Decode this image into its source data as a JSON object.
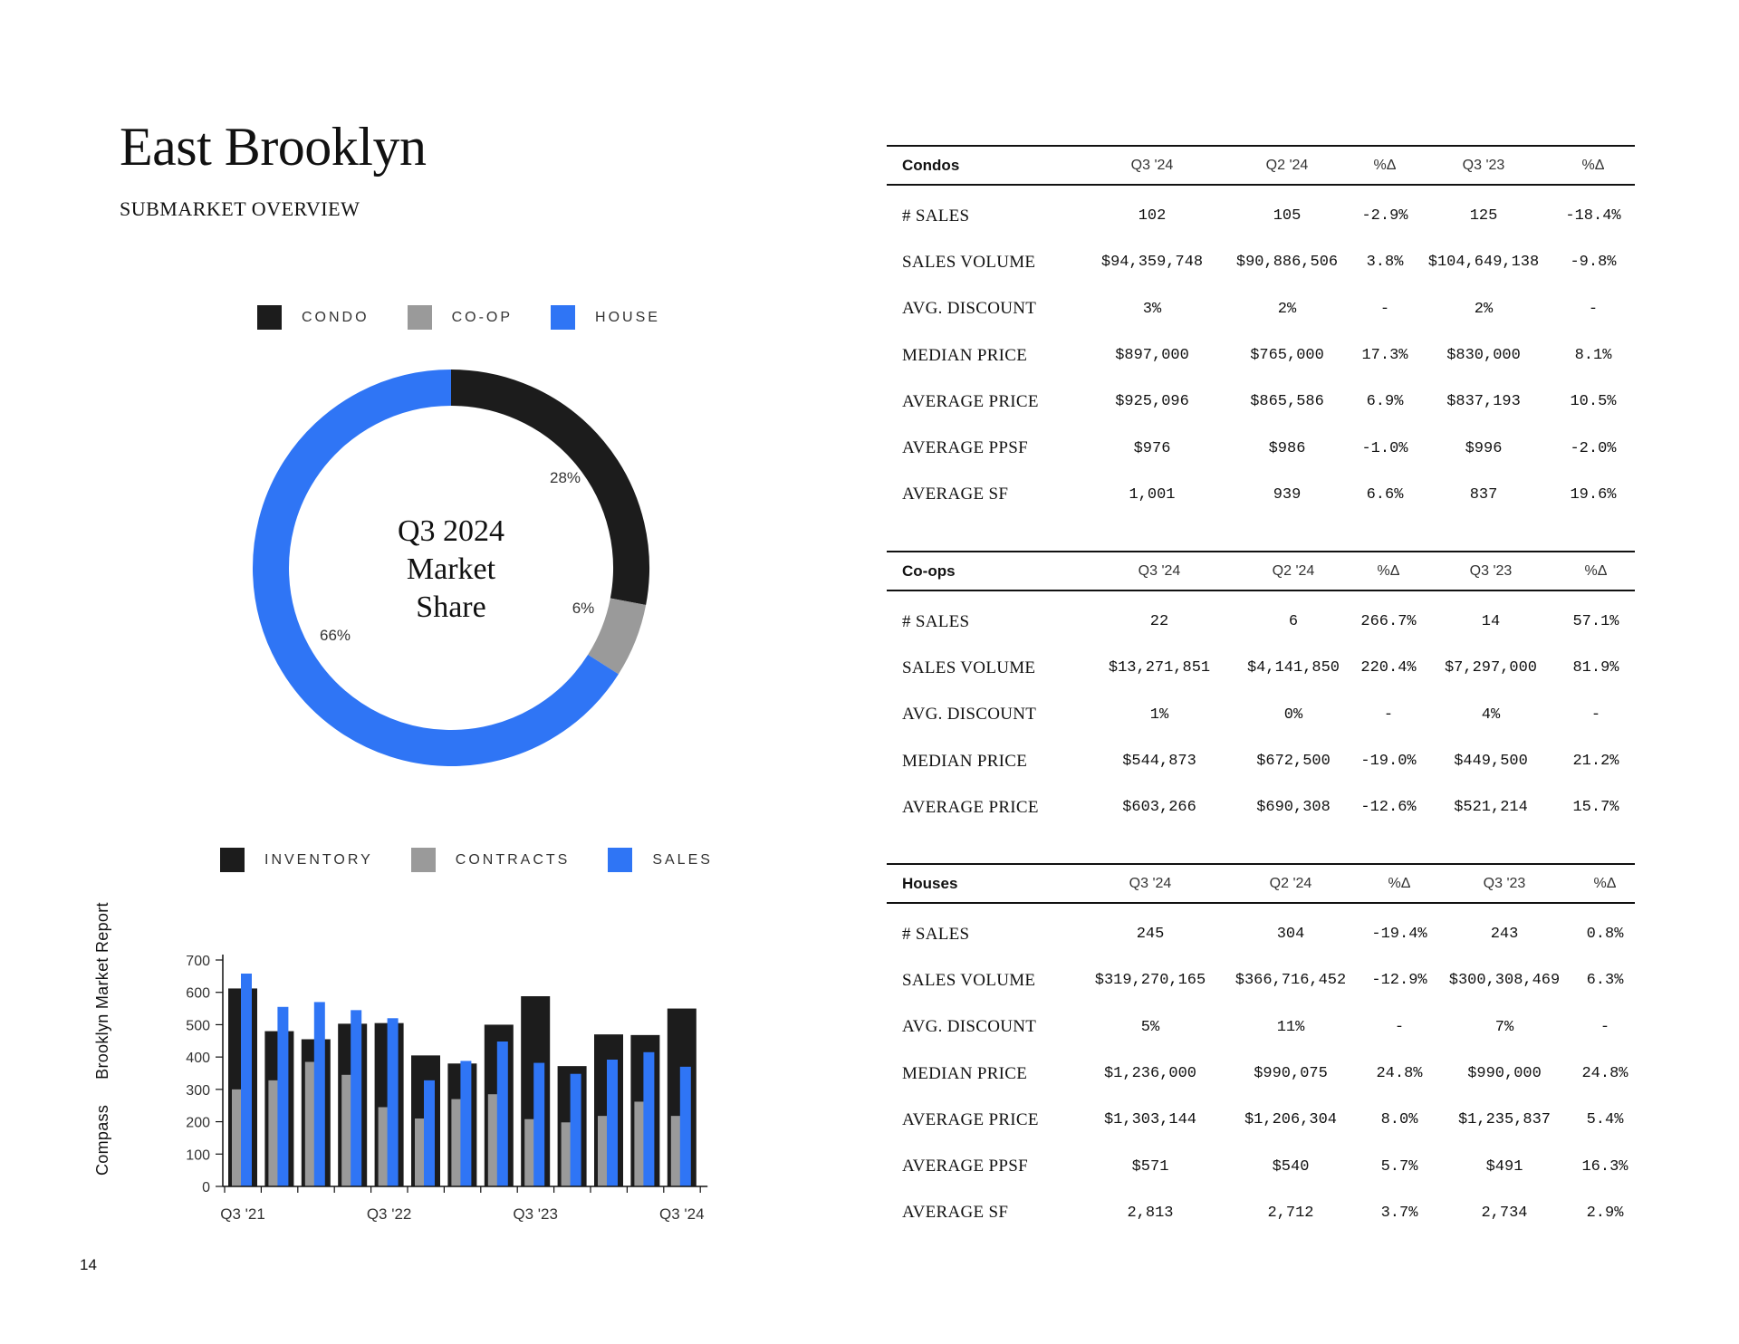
{
  "header": {
    "title": "East Brooklyn",
    "subtitle": "SUBMARKET OVERVIEW"
  },
  "colors": {
    "condo": "#1c1c1c",
    "coop": "#9a9a9a",
    "house": "#2f75f5",
    "inventory": "#1c1c1c",
    "contracts": "#9a9a9a",
    "sales": "#2f75f5"
  },
  "market_share": {
    "legend": [
      "CONDO",
      "CO-OP",
      "HOUSE"
    ],
    "center_lines": [
      "Q3 2024",
      "Market",
      "Share"
    ],
    "labels": [
      "28%",
      "6%",
      "66%"
    ]
  },
  "bar_legend": [
    "INVENTORY",
    "CONTRACTS",
    "SALES"
  ],
  "chart_data": [
    {
      "type": "pie",
      "title": "Q3 2024 Market Share",
      "categories": [
        "CONDO",
        "CO-OP",
        "HOUSE"
      ],
      "values": [
        28,
        6,
        66
      ],
      "labels": [
        "28%",
        "6%",
        "66%"
      ]
    },
    {
      "type": "bar",
      "categories": [
        "Q3 '21",
        "Q4 '21",
        "Q1 '22",
        "Q2 '22",
        "Q3 '22",
        "Q4 '22",
        "Q1 '23",
        "Q2 '23",
        "Q3 '23",
        "Q4 '23",
        "Q1 '24",
        "Q2 '24",
        "Q3 '24"
      ],
      "tick_labels": [
        "Q3 '21",
        "Q3 '22",
        "Q3 '23",
        "Q3 '24"
      ],
      "series": [
        {
          "name": "INVENTORY",
          "values": [
            612,
            480,
            455,
            503,
            505,
            405,
            380,
            500,
            588,
            372,
            470,
            468,
            550
          ]
        },
        {
          "name": "CONTRACTS",
          "values": [
            300,
            328,
            385,
            345,
            245,
            210,
            270,
            285,
            208,
            198,
            218,
            262,
            218
          ]
        },
        {
          "name": "SALES",
          "values": [
            658,
            555,
            570,
            545,
            520,
            328,
            388,
            448,
            382,
            348,
            392,
            415,
            370
          ]
        }
      ],
      "ylim": [
        0,
        700
      ],
      "yticks": [
        0,
        100,
        200,
        300,
        400,
        500,
        600,
        700
      ],
      "xlabel": "",
      "ylabel": ""
    }
  ],
  "sidebar": {
    "brand": "Compass",
    "report": "Brooklyn Market Report"
  },
  "page_number": "14",
  "tables": [
    {
      "category": "Condos",
      "columns": [
        "Q3 '24",
        "Q2 '24",
        "%Δ",
        "Q3 '23",
        "%Δ"
      ],
      "rows": [
        {
          "label": "# SALES",
          "values": [
            "102",
            "105",
            "-2.9%",
            "125",
            "-18.4%"
          ]
        },
        {
          "label": "SALES VOLUME",
          "values": [
            "$94,359,748",
            "$90,886,506",
            "3.8%",
            "$104,649,138",
            "-9.8%"
          ]
        },
        {
          "label": "AVG. DISCOUNT",
          "values": [
            "3%",
            "2%",
            "-",
            "2%",
            "-"
          ]
        },
        {
          "label": "MEDIAN PRICE",
          "values": [
            "$897,000",
            "$765,000",
            "17.3%",
            "$830,000",
            "8.1%"
          ]
        },
        {
          "label": "AVERAGE PRICE",
          "values": [
            "$925,096",
            "$865,586",
            "6.9%",
            "$837,193",
            "10.5%"
          ]
        },
        {
          "label": "AVERAGE PPSF",
          "values": [
            "$976",
            "$986",
            "-1.0%",
            "$996",
            "-2.0%"
          ]
        },
        {
          "label": "AVERAGE SF",
          "values": [
            "1,001",
            "939",
            "6.6%",
            "837",
            "19.6%"
          ]
        }
      ]
    },
    {
      "category": "Co-ops",
      "columns": [
        "Q3 '24",
        "Q2 '24",
        "%Δ",
        "Q3 '23",
        "%Δ"
      ],
      "rows": [
        {
          "label": "# SALES",
          "values": [
            "22",
            "6",
            "266.7%",
            "14",
            "57.1%"
          ]
        },
        {
          "label": "SALES VOLUME",
          "values": [
            "$13,271,851",
            "$4,141,850",
            "220.4%",
            "$7,297,000",
            "81.9%"
          ]
        },
        {
          "label": "AVG. DISCOUNT",
          "values": [
            "1%",
            "0%",
            "-",
            "4%",
            "-"
          ]
        },
        {
          "label": "MEDIAN PRICE",
          "values": [
            "$544,873",
            "$672,500",
            "-19.0%",
            "$449,500",
            "21.2%"
          ]
        },
        {
          "label": "AVERAGE PRICE",
          "values": [
            "$603,266",
            "$690,308",
            "-12.6%",
            "$521,214",
            "15.7%"
          ]
        }
      ]
    },
    {
      "category": "Houses",
      "columns": [
        "Q3 '24",
        "Q2 '24",
        "%Δ",
        "Q3 '23",
        "%Δ"
      ],
      "rows": [
        {
          "label": "# SALES",
          "values": [
            "245",
            "304",
            "-19.4%",
            "243",
            "0.8%"
          ]
        },
        {
          "label": "SALES VOLUME",
          "values": [
            "$319,270,165",
            "$366,716,452",
            "-12.9%",
            "$300,308,469",
            "6.3%"
          ]
        },
        {
          "label": "AVG. DISCOUNT",
          "values": [
            "5%",
            "11%",
            "-",
            "7%",
            "-"
          ]
        },
        {
          "label": "MEDIAN PRICE",
          "values": [
            "$1,236,000",
            "$990,075",
            "24.8%",
            "$990,000",
            "24.8%"
          ]
        },
        {
          "label": "AVERAGE PRICE",
          "values": [
            "$1,303,144",
            "$1,206,304",
            "8.0%",
            "$1,235,837",
            "5.4%"
          ]
        },
        {
          "label": "AVERAGE PPSF",
          "values": [
            "$571",
            "$540",
            "5.7%",
            "$491",
            "16.3%"
          ]
        },
        {
          "label": "AVERAGE SF",
          "values": [
            "2,813",
            "2,712",
            "3.7%",
            "2,734",
            "2.9%"
          ]
        }
      ]
    }
  ]
}
